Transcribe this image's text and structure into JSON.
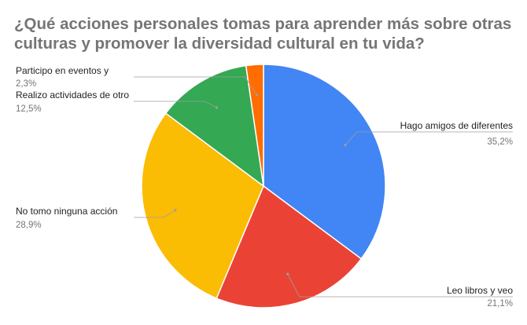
{
  "chart_data": {
    "type": "pie",
    "title": "¿Qué acciones personales tomas para aprender más sobre otras culturas y promover la diversidad cultural en tu vida?",
    "slices": [
      {
        "label": "Hago amigos de diferentes",
        "value": 35.2,
        "display": "35,2%",
        "color": "#4285F4"
      },
      {
        "label": "Leo libros y veo",
        "value": 21.1,
        "display": "21,1%",
        "color": "#EA4335"
      },
      {
        "label": "No tomo ninguna acción",
        "value": 28.9,
        "display": "28,9%",
        "color": "#FBBC04"
      },
      {
        "label": "Realizo actividades de otro",
        "value": 12.5,
        "display": "12,5%",
        "color": "#34A853"
      },
      {
        "label": "Participo en eventos y",
        "value": 2.3,
        "display": "2,3%",
        "color": "#FF6D01"
      }
    ]
  }
}
